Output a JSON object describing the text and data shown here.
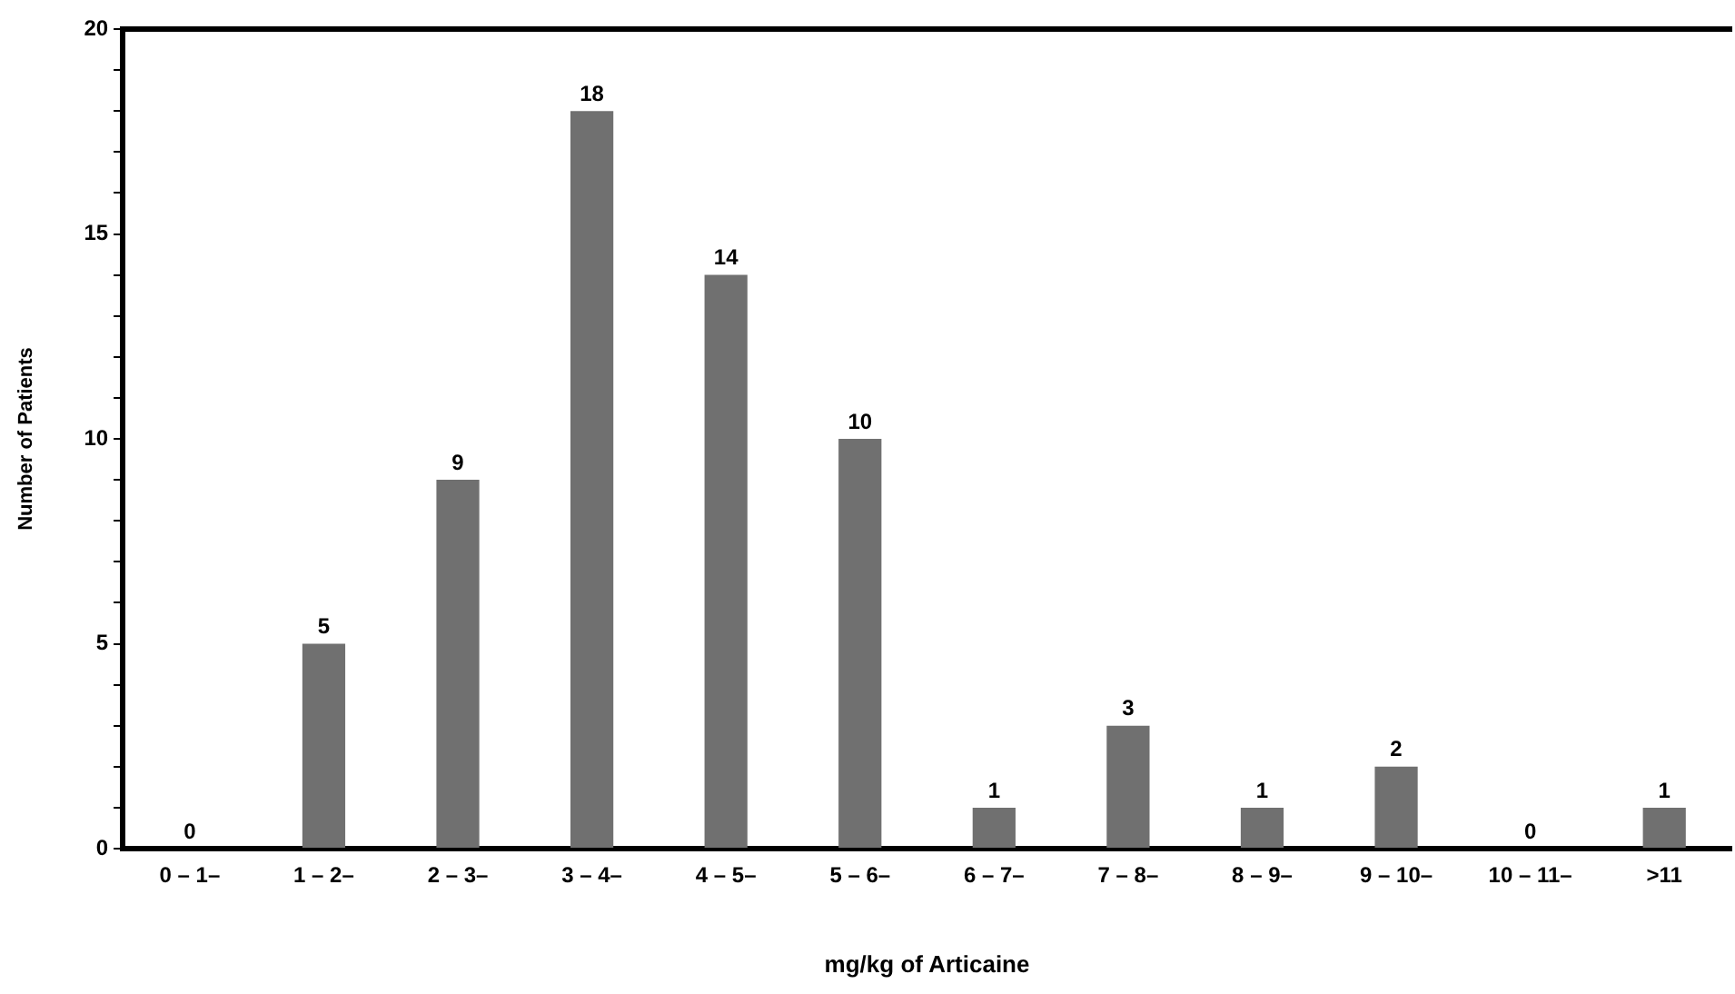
{
  "chart_data": {
    "type": "bar",
    "xlabel": "mg/kg of Articaine",
    "ylabel": "Number of Patients",
    "categories": [
      "0 – 1–",
      "1 – 2–",
      "2 – 3–",
      "3 – 4–",
      "4 – 5–",
      "5 – 6–",
      "6 – 7–",
      "7 – 8–",
      "8 – 9–",
      "9 – 10–",
      "10 – 11–",
      ">11"
    ],
    "values": [
      0,
      5,
      9,
      18,
      14,
      10,
      1,
      3,
      1,
      2,
      0,
      1
    ],
    "color": "#707070",
    "ylim": [
      0,
      20
    ],
    "yticks": [
      0,
      {
        "value": 1,
        "label": null
      },
      {
        "value": 2,
        "label": null
      },
      {
        "value": 3,
        "label": null
      },
      {
        "value": 4,
        "label": null
      },
      5,
      {
        "value": 6,
        "label": null
      },
      {
        "value": 7,
        "label": null
      },
      {
        "value": 8,
        "label": null
      },
      {
        "value": 9,
        "label": null
      },
      10,
      {
        "value": 11,
        "label": null
      },
      {
        "value": 12,
        "label": null
      },
      {
        "value": 13,
        "label": null
      },
      {
        "value": 14,
        "label": null
      },
      15,
      {
        "value": 16,
        "label": null
      },
      {
        "value": 17,
        "label": null
      },
      {
        "value": 18,
        "label": null
      },
      {
        "value": 19,
        "label": null
      },
      20
    ],
    "data_labels": true,
    "grid": false,
    "legend": false
  }
}
